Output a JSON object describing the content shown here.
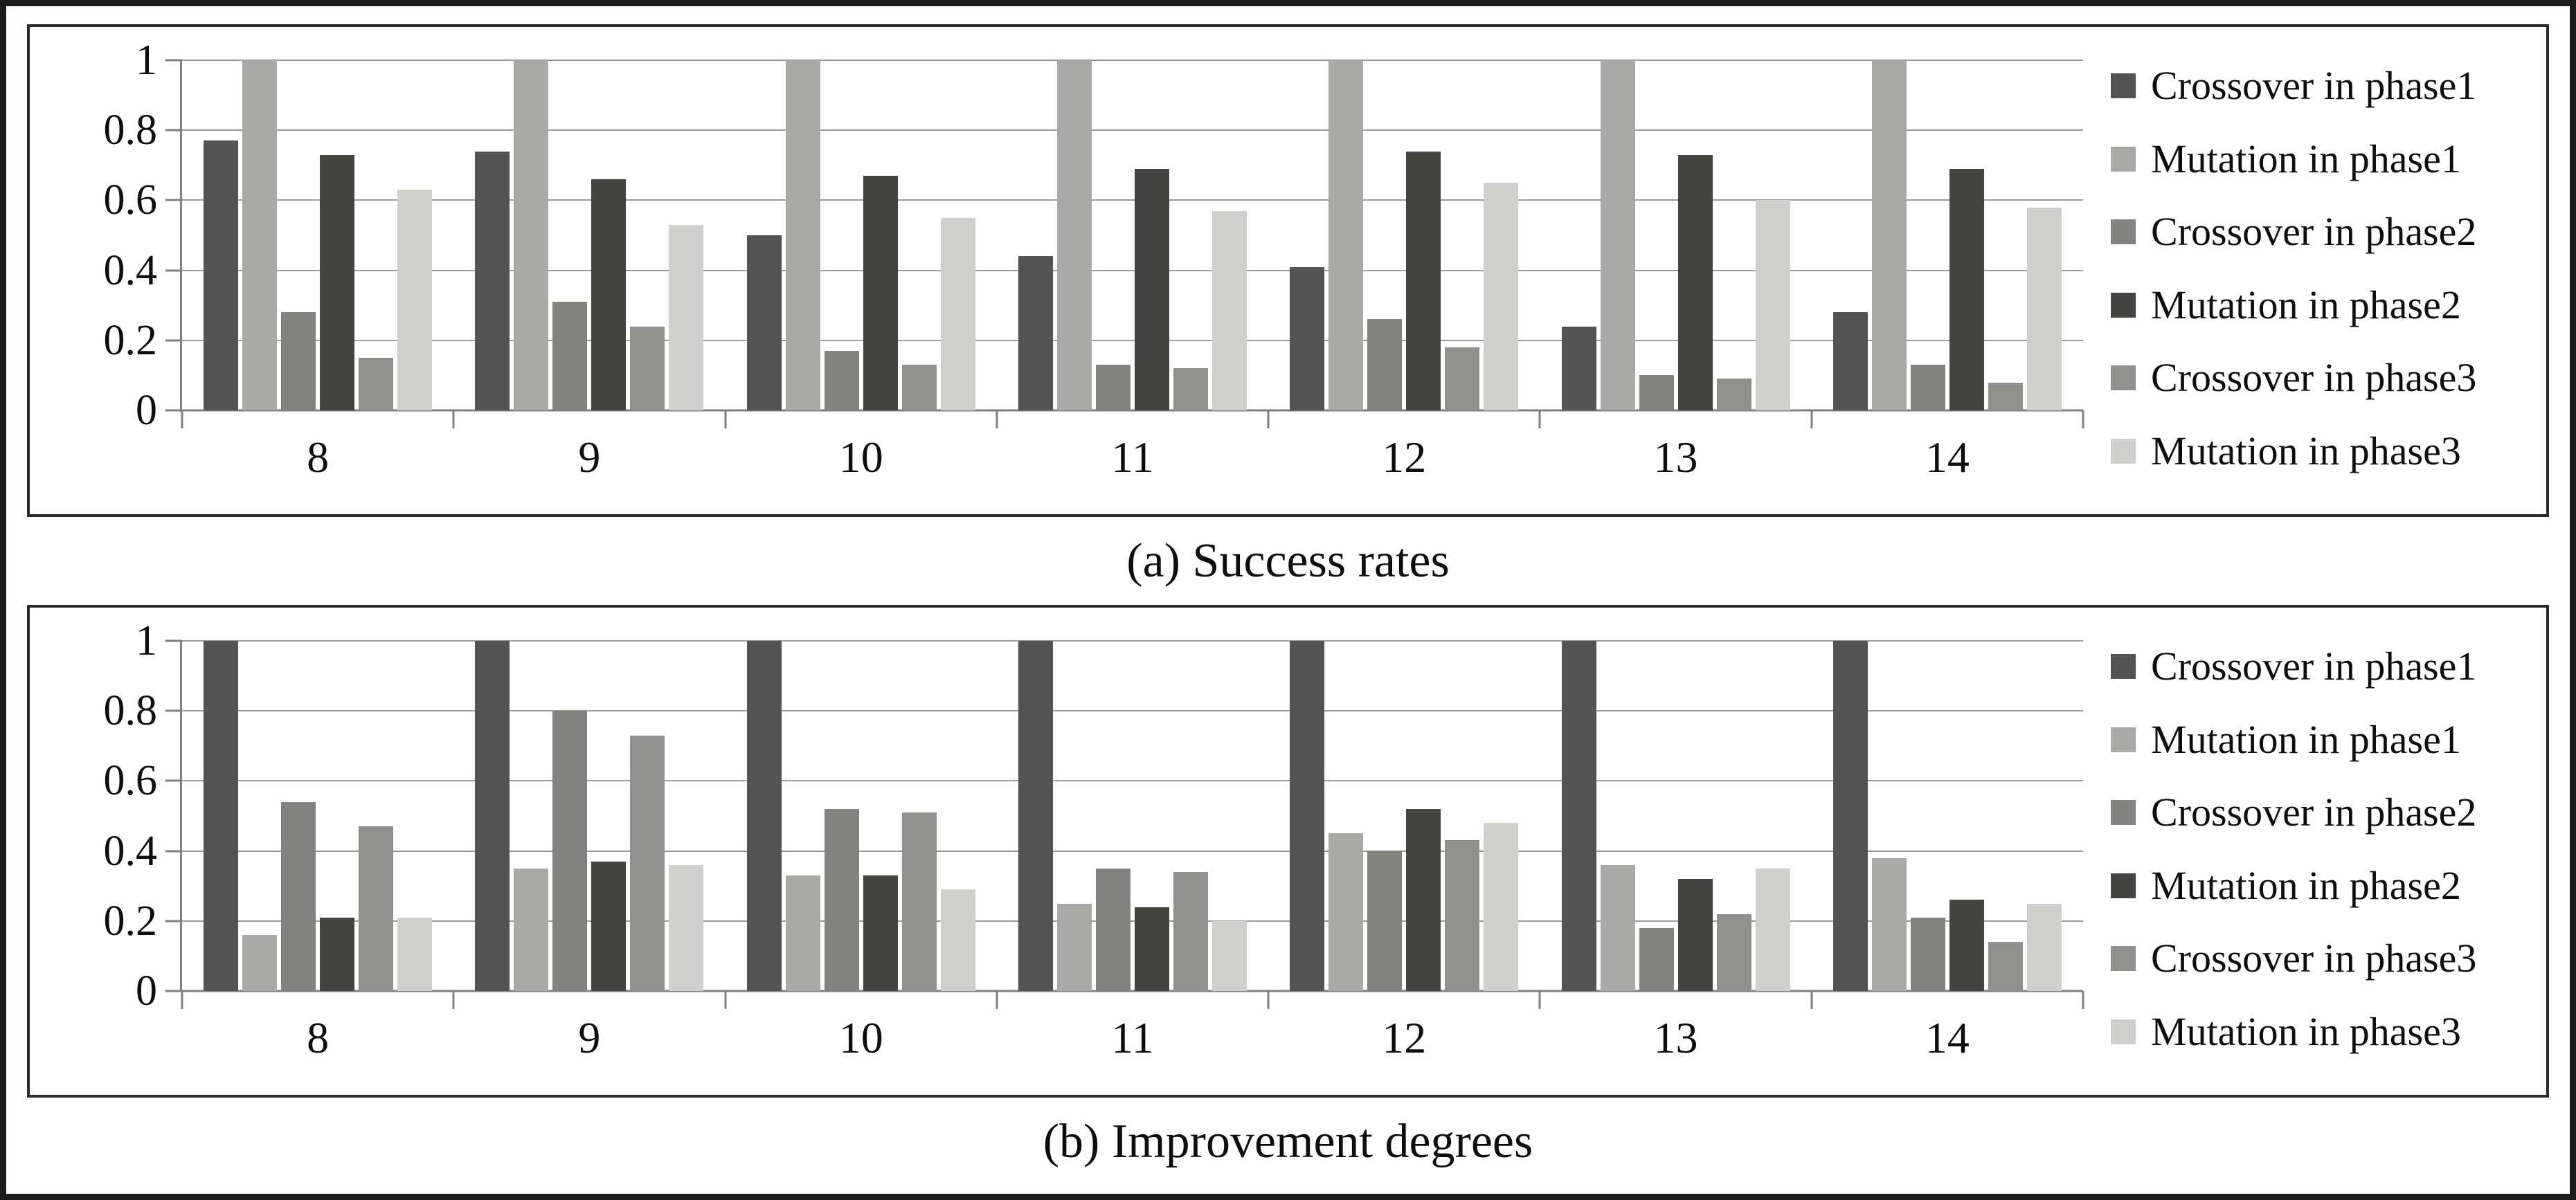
{
  "colors": {
    "outer_border": "#1A1A1A",
    "panel_border": "#2B2B2B",
    "grid": "#9A9A9A",
    "axis": "#7F7F7F",
    "text": "#0D0D0D",
    "background": "#FFFFFF"
  },
  "chart_data": [
    {
      "type": "bar",
      "title": "(a) Success rates",
      "categories": [
        "8",
        "9",
        "10",
        "11",
        "12",
        "13",
        "14"
      ],
      "y_ticks": [
        "1",
        "0.8",
        "0.6",
        "0.4",
        "0.2",
        "0"
      ],
      "ylim": [
        0,
        1
      ],
      "grid": true,
      "legend_position": "right",
      "series": [
        {
          "name": "Crossover in phase1",
          "color": "#535353",
          "values": [
            0.77,
            0.74,
            0.5,
            0.44,
            0.41,
            0.24,
            0.28
          ]
        },
        {
          "name": "Mutation in phase1",
          "color": "#A9A8A4",
          "values": [
            1.0,
            1.0,
            1.0,
            1.0,
            1.0,
            1.0,
            1.0
          ]
        },
        {
          "name": "Crossover in phase2",
          "color": "#83827E",
          "values": [
            0.28,
            0.31,
            0.17,
            0.13,
            0.26,
            0.1,
            0.13
          ]
        },
        {
          "name": "Mutation in phase2",
          "color": "#454440",
          "values": [
            0.73,
            0.66,
            0.67,
            0.69,
            0.74,
            0.73,
            0.69
          ]
        },
        {
          "name": "Crossover in phase3",
          "color": "#908F8B",
          "values": [
            0.15,
            0.24,
            0.13,
            0.12,
            0.18,
            0.09,
            0.08
          ]
        },
        {
          "name": "Mutation in phase3",
          "color": "#D0CFCB",
          "values": [
            0.63,
            0.53,
            0.55,
            0.57,
            0.65,
            0.6,
            0.58
          ]
        }
      ]
    },
    {
      "type": "bar",
      "title": "(b) Improvement degrees",
      "categories": [
        "8",
        "9",
        "10",
        "11",
        "12",
        "13",
        "14"
      ],
      "y_ticks": [
        "1",
        "0.8",
        "0.6",
        "0.4",
        "0.2",
        "0"
      ],
      "ylim": [
        0,
        1
      ],
      "grid": true,
      "legend_position": "right",
      "series": [
        {
          "name": "Crossover in phase1",
          "color": "#535353",
          "values": [
            1.0,
            1.0,
            1.0,
            1.0,
            1.0,
            1.0,
            1.0
          ]
        },
        {
          "name": "Mutation in phase1",
          "color": "#A9A8A4",
          "values": [
            0.16,
            0.35,
            0.33,
            0.25,
            0.45,
            0.36,
            0.38
          ]
        },
        {
          "name": "Crossover in phase2",
          "color": "#83827E",
          "values": [
            0.54,
            0.8,
            0.52,
            0.35,
            0.4,
            0.18,
            0.21
          ]
        },
        {
          "name": "Mutation in phase2",
          "color": "#454440",
          "values": [
            0.21,
            0.37,
            0.33,
            0.24,
            0.52,
            0.32,
            0.26
          ]
        },
        {
          "name": "Crossover in phase3",
          "color": "#908F8B",
          "values": [
            0.47,
            0.73,
            0.51,
            0.34,
            0.43,
            0.22,
            0.14
          ]
        },
        {
          "name": "Mutation in phase3",
          "color": "#D0CFCB",
          "values": [
            0.21,
            0.36,
            0.29,
            0.2,
            0.48,
            0.35,
            0.25
          ]
        }
      ]
    }
  ]
}
